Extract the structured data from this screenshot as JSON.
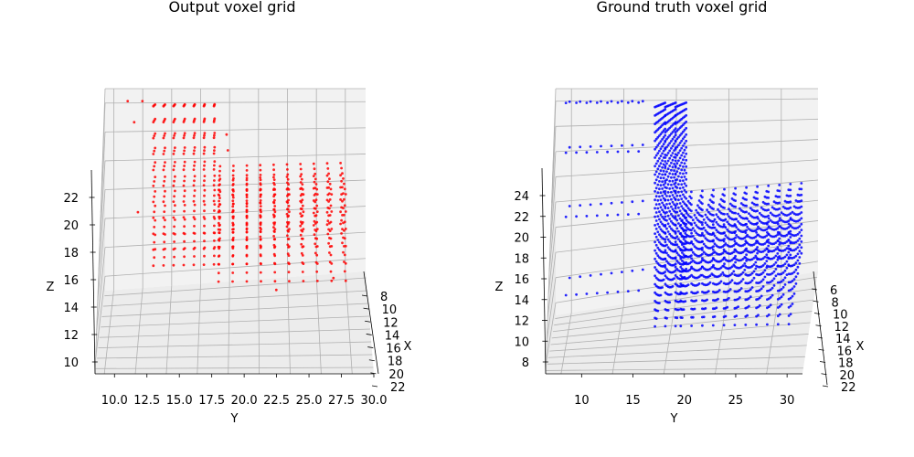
{
  "figure": {
    "colors": {
      "pane": "#f2f2f2",
      "grid": "#b0b0b0",
      "axis": "#000000"
    }
  },
  "chart_data": [
    {
      "type": "scatter",
      "projection": "3d",
      "title": "Output voxel grid",
      "xlabel": "X",
      "ylabel": "Y",
      "zlabel": "Z",
      "color": "#ff0000",
      "marker": "dot",
      "grid": true,
      "xlim": [
        7,
        22
      ],
      "ylim": [
        8.5,
        30
      ],
      "zlim": [
        8.8,
        24.5
      ],
      "x_ticks": [
        "8",
        "10",
        "12",
        "14",
        "16",
        "18",
        "20",
        "22"
      ],
      "y_ticks": [
        "10.0",
        "12.5",
        "15.0",
        "17.5",
        "20.0",
        "22.5",
        "25.0",
        "27.5",
        "30.0"
      ],
      "z_ticks": [
        "10",
        "12",
        "14",
        "16",
        "18",
        "20",
        "22"
      ],
      "description_of_shape": "L-shaped object: tall vertical slab at Y≈13–17 plus a lower horizontal slab extending to Y≈28",
      "slabs": [
        {
          "y_start": 12.8,
          "y_end": 17.6,
          "y_step": 0.8,
          "z_bottom": 13.4,
          "z_top": 24.0,
          "x_range": [
            12,
            16
          ]
        },
        {
          "y_start": 18.0,
          "y_end": 28.2,
          "y_step": 1.1,
          "z_bottom": 13.4,
          "z_top": 18.4,
          "x_range": [
            8,
            20
          ]
        }
      ],
      "outliers": [
        {
          "x": 14,
          "y": 11.2,
          "z": 22.3
        },
        {
          "x": 10,
          "y": 10.5,
          "z": 23.6
        },
        {
          "x": 10,
          "y": 11.7,
          "z": 23.6
        },
        {
          "x": 16,
          "y": 18.6,
          "z": 21.6
        },
        {
          "x": 16,
          "y": 18.7,
          "z": 20.6
        },
        {
          "x": 14,
          "y": 11.5,
          "z": 16.4
        },
        {
          "x": 18,
          "y": 27.0,
          "z": 13.0
        },
        {
          "x": 20,
          "y": 22.5,
          "z": 12.9
        }
      ]
    },
    {
      "type": "scatter",
      "projection": "3d",
      "title": "Ground truth voxel grid",
      "xlabel": "X",
      "ylabel": "Y",
      "zlabel": "Z",
      "color": "#0000ff",
      "marker": "dot",
      "grid": true,
      "xlim": [
        5,
        22
      ],
      "ylim": [
        6.5,
        31.5
      ],
      "zlim": [
        8,
        26
      ],
      "x_ticks": [
        "6",
        "8",
        "10",
        "12",
        "14",
        "16",
        "18",
        "20",
        "22"
      ],
      "y_ticks": [
        "10",
        "15",
        "20",
        "25",
        "30"
      ],
      "z_ticks": [
        "8",
        "10",
        "12",
        "14",
        "16",
        "18",
        "20",
        "22",
        "24"
      ],
      "description_of_shape": "L-shaped object: tall dense column at Y≈17–19 up to Z≈25, horizontal slab from Y≈19 to 30, sparse shelves on the left at Y≈8–15",
      "slabs": [
        {
          "y_start": 17.0,
          "y_end": 19.0,
          "y_step": 1.0,
          "z_bottom": 10.5,
          "z_top": 25.0,
          "x_range": [
            6,
            20
          ]
        },
        {
          "y_start": 19.5,
          "y_end": 30.0,
          "y_step": 1.05,
          "z_bottom": 10.5,
          "z_top": 17.5,
          "x_range": [
            6,
            20
          ]
        }
      ],
      "shelves": [
        {
          "z": 25.0,
          "y_values": [
            8,
            9,
            10,
            11,
            12,
            13,
            14,
            15
          ]
        },
        {
          "z": 21.5,
          "y_values": [
            8,
            9,
            10,
            11,
            12,
            13,
            14,
            15
          ]
        },
        {
          "z": 17.0,
          "y_values": [
            8,
            9,
            10,
            11,
            12,
            13,
            14,
            15
          ]
        },
        {
          "z": 11.5,
          "y_values": [
            8,
            9,
            10,
            11,
            12,
            13,
            14,
            15
          ]
        }
      ]
    }
  ]
}
